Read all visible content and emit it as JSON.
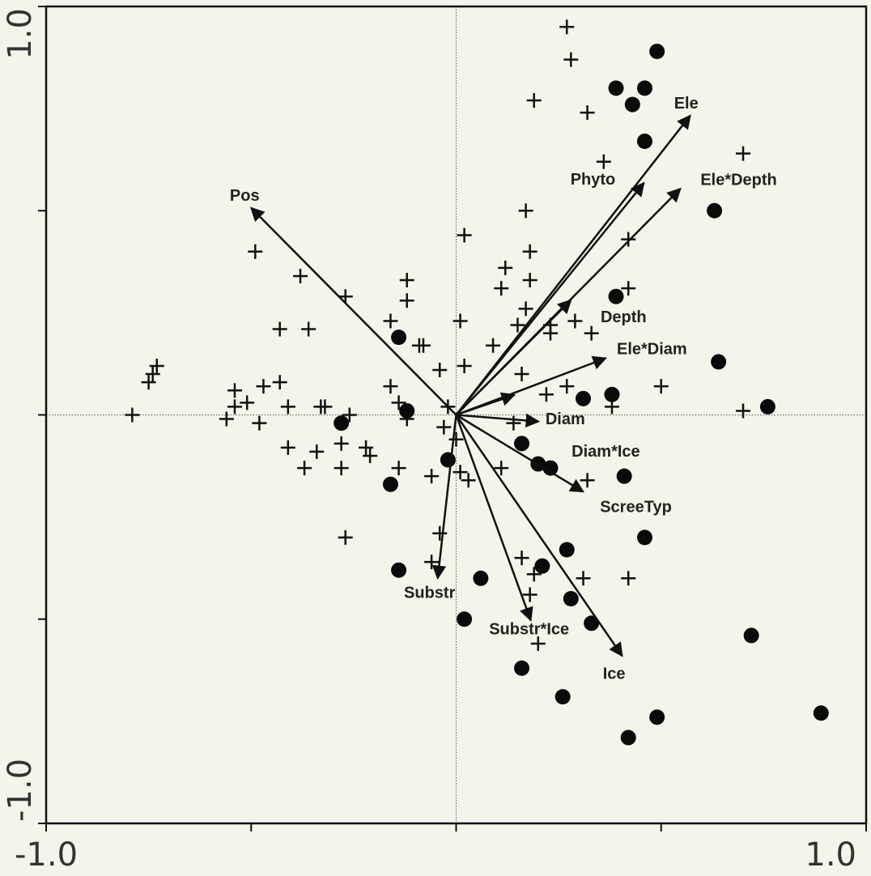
{
  "chart_data": {
    "type": "biplot",
    "xlim": [
      -1.0,
      1.0
    ],
    "ylim": [
      -1.0,
      1.0
    ],
    "xticks": [
      {
        "value": -1.0,
        "label": "-1.0"
      },
      {
        "value": 1.0,
        "label": "1.0"
      }
    ],
    "yticks": [
      {
        "value": -1.0,
        "label": "-1.0"
      },
      {
        "value": 1.0,
        "label": "1.0"
      }
    ],
    "xminor": [
      -0.5,
      0,
      0.5
    ],
    "yminor": [
      -0.5,
      0,
      0.5
    ],
    "zero_lines": true,
    "series": [
      {
        "marker": "cross",
        "color": "#111111",
        "x": [
          0.27,
          0.28,
          0.19,
          0.32,
          0.36,
          0.7,
          0.17,
          0.02,
          0.42,
          0.18,
          -0.49,
          0.12,
          0.18,
          0.11,
          -0.38,
          -0.12,
          -0.12,
          -0.27,
          0.42,
          0.17,
          -0.16,
          0.01,
          0.29,
          0.15,
          0.23,
          0.33,
          -0.43,
          -0.36,
          -0.09,
          -0.08,
          0.09,
          0.23,
          -0.73,
          -0.74,
          -0.75,
          -0.79,
          0.02,
          -0.04,
          0.16,
          -0.16,
          -0.47,
          -0.43,
          -0.54,
          -0.51,
          -0.54,
          -0.41,
          -0.33,
          -0.32,
          -0.26,
          0.27,
          0.22,
          0.5,
          0.7,
          0.38,
          -0.02,
          -0.56,
          -0.48,
          -0.12,
          -0.14,
          -0.03,
          0.0,
          0.14,
          -0.41,
          -0.34,
          -0.28,
          -0.22,
          -0.21,
          -0.37,
          -0.28,
          -0.14,
          -0.06,
          0.01,
          0.03,
          0.11,
          0.32,
          -0.04,
          -0.27,
          -0.06,
          0.16,
          0.42,
          0.31,
          0.19,
          0.18,
          0.2
        ],
        "values": [
          0.95,
          0.87,
          0.77,
          0.74,
          0.62,
          0.64,
          0.5,
          0.44,
          0.43,
          0.4,
          0.4,
          0.36,
          0.33,
          0.31,
          0.34,
          0.33,
          0.28,
          0.29,
          0.31,
          0.26,
          0.23,
          0.23,
          0.23,
          0.22,
          0.22,
          0.2,
          0.21,
          0.21,
          0.17,
          0.17,
          0.17,
          0.2,
          0.12,
          0.1,
          0.08,
          0.0,
          0.12,
          0.11,
          0.1,
          0.07,
          0.07,
          0.08,
          0.06,
          0.03,
          0.02,
          0.02,
          0.02,
          0.02,
          0.0,
          0.07,
          0.05,
          0.07,
          0.01,
          0.02,
          0.02,
          -0.01,
          -0.02,
          -0.01,
          0.03,
          -0.03,
          -0.06,
          -0.02,
          -0.08,
          -0.09,
          -0.07,
          -0.08,
          -0.1,
          -0.13,
          -0.13,
          -0.13,
          -0.15,
          -0.14,
          -0.16,
          -0.13,
          -0.16,
          -0.29,
          -0.3,
          -0.36,
          -0.35,
          -0.4,
          -0.4,
          -0.39,
          -0.44,
          -0.56
        ]
      },
      {
        "marker": "dot",
        "color": "#0a0a0a",
        "x": [
          0.49,
          0.39,
          0.46,
          0.43,
          0.46,
          0.63,
          0.39,
          0.64,
          -0.14,
          -0.12,
          -0.28,
          0.31,
          0.38,
          0.76,
          0.16,
          0.2,
          0.23,
          0.41,
          -0.02,
          -0.16,
          0.46,
          0.27,
          0.21,
          -0.14,
          0.06,
          0.28,
          0.33,
          0.02,
          0.16,
          0.26,
          0.72,
          0.49,
          0.42,
          0.89
        ],
        "values": [
          0.89,
          0.8,
          0.8,
          0.76,
          0.67,
          0.5,
          0.29,
          0.13,
          0.19,
          0.01,
          -0.02,
          0.04,
          0.05,
          0.02,
          -0.07,
          -0.12,
          -0.13,
          -0.15,
          -0.11,
          -0.17,
          -0.3,
          -0.33,
          -0.37,
          -0.38,
          -0.4,
          -0.45,
          -0.51,
          -0.5,
          -0.62,
          -0.69,
          -0.54,
          -0.74,
          -0.79,
          -0.73
        ]
      }
    ],
    "arrows": [
      {
        "label": "Pos",
        "x": -0.5,
        "y": 0.507
      },
      {
        "label": "Phyto",
        "x": 0.458,
        "y": 0.568
      },
      {
        "label": "Ele",
        "x": 0.571,
        "y": 0.733
      },
      {
        "label": "Ele*Depth",
        "x": 0.547,
        "y": 0.554
      },
      {
        "label": "Depth",
        "x": 0.28,
        "y": 0.281
      },
      {
        "label": "Ele*Diam",
        "x": 0.365,
        "y": 0.139
      },
      {
        "label": "Diam*Ice",
        "x": 0.142,
        "y": 0.049
      },
      {
        "label": "Diam",
        "x": 0.201,
        "y": -0.016
      },
      {
        "label": "ScreeTyp",
        "x": 0.31,
        "y": -0.188
      },
      {
        "label": "Substr",
        "x": -0.045,
        "y": -0.4
      },
      {
        "label": "Substr*Ice",
        "x": 0.182,
        "y": -0.503
      },
      {
        "label": "Ice",
        "x": 0.405,
        "y": -0.59
      }
    ]
  }
}
